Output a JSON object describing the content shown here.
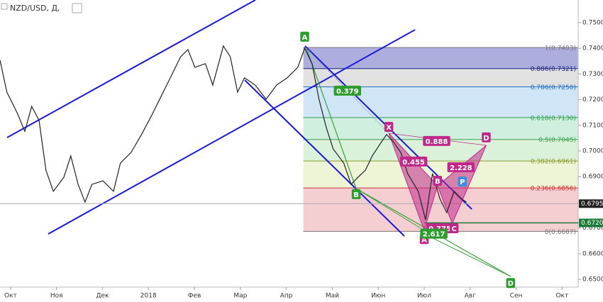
{
  "chart_data": {
    "type": "line",
    "title": "NZD/USD, Д,",
    "x": [
      -0.23,
      -0.08,
      0.15,
      0.31,
      0.46,
      0.62,
      0.77,
      0.93,
      1.16,
      1.31,
      1.47,
      1.62,
      1.77,
      2.01,
      2.24,
      2.39,
      2.62,
      2.85,
      3.09,
      3.32,
      3.55,
      3.7,
      3.86,
      4.01,
      4.24,
      4.4,
      4.63,
      4.78,
      4.94,
      5.09,
      5.32,
      5.56,
      5.79,
      6.02,
      6.25,
      6.4,
      6.56,
      6.71,
      6.87,
      7.02,
      7.25,
      7.41,
      7.56,
      7.72,
      7.87,
      8.02,
      8.18,
      8.33,
      8.49,
      8.64,
      8.87,
      9.03,
      9.18,
      9.34,
      9.49,
      9.65,
      9.8,
      9.92
    ],
    "series": [
      {
        "color": "#222222",
        "values": [
          0.7354,
          0.7229,
          0.7146,
          0.7077,
          0.7174,
          0.7119,
          0.6925,
          0.6843,
          0.6898,
          0.6981,
          0.687,
          0.6801,
          0.687,
          0.6884,
          0.6843,
          0.6953,
          0.6994,
          0.7064,
          0.7146,
          0.7229,
          0.7312,
          0.7367,
          0.7395,
          0.7326,
          0.734,
          0.7257,
          0.7409,
          0.7367,
          0.7229,
          0.7285,
          0.7257,
          0.7202,
          0.7257,
          0.7285,
          0.7326,
          0.7401,
          0.734,
          0.7202,
          0.7091,
          0.7008,
          0.6953,
          0.687,
          0.6898,
          0.6925,
          0.6981,
          0.7022,
          0.7064,
          0.7036,
          0.6994,
          0.6912,
          0.6843,
          0.6732,
          0.6912,
          0.6815,
          0.676,
          0.6843,
          0.6815,
          0.6801
        ]
      }
    ],
    "xlim": [
      -0.23,
      12.35
    ],
    "ylim": [
      0.647,
      0.7588
    ],
    "xticks": [
      {
        "value": 0,
        "label": "Окт"
      },
      {
        "value": 1,
        "label": "Ноя"
      },
      {
        "value": 2,
        "label": "Дек"
      },
      {
        "value": 3,
        "label": "2018"
      },
      {
        "value": 4,
        "label": "Фев"
      },
      {
        "value": 5,
        "label": "Мар"
      },
      {
        "value": 6,
        "label": "Апр"
      },
      {
        "value": 7,
        "label": "Май"
      },
      {
        "value": 8,
        "label": "Июн"
      },
      {
        "value": 9,
        "label": "Июл"
      },
      {
        "value": 10,
        "label": "Авг"
      },
      {
        "value": 11,
        "label": "Сен"
      },
      {
        "value": 12,
        "label": "Окт"
      }
    ],
    "yticks": [
      {
        "value": 0.65,
        "label": "0.6500"
      },
      {
        "value": 0.66,
        "label": "0.6600"
      },
      {
        "value": 0.67,
        "label": "0.6700"
      },
      {
        "value": 0.68,
        "label": "0.6800"
      },
      {
        "value": 0.69,
        "label": "0.6900"
      },
      {
        "value": 0.7,
        "label": "0.7000"
      },
      {
        "value": 0.71,
        "label": "0.7100"
      },
      {
        "value": 0.72,
        "label": "0.7200"
      },
      {
        "value": 0.73,
        "label": "0.7300"
      },
      {
        "value": 0.74,
        "label": "0.7400"
      },
      {
        "value": 0.75,
        "label": "0.7500"
      }
    ],
    "fib_start": 6.37,
    "fib_levels": [
      {
        "label": "1(0.7403)",
        "value": 0.7403,
        "color": "#777777",
        "fill": "#9fa0d8"
      },
      {
        "label": "0.886(0.7321)",
        "value": 0.7321,
        "color": "#1a237e",
        "fill": "#dcdcdc"
      },
      {
        "label": "0.786(0.7250)",
        "value": 0.725,
        "color": "#1e6fc0",
        "fill": "#c8e2f4"
      },
      {
        "label": "0.618(0.7130)",
        "value": 0.713,
        "color": "#2e9d4f",
        "fill": "#c9ecd9"
      },
      {
        "label": "0.5(0.7045)",
        "value": 0.7045,
        "color": "#3aa04a",
        "fill": "#d6eed3"
      },
      {
        "label": "0.382(0.6961)",
        "value": 0.6961,
        "color": "#8a9a2a",
        "fill": "#ebf2cf"
      },
      {
        "label": "0.236(0.6856)",
        "value": 0.6856,
        "color": "#d03030",
        "fill": "#f3c6ca"
      },
      {
        "label": "0(0.6687)",
        "value": 0.6687,
        "color": "#777777"
      }
    ],
    "price_markers": [
      {
        "value": 0.6795,
        "label": "0.6795",
        "color": "#222222"
      },
      {
        "value": 0.672,
        "label": "0.6720",
        "color": "#1b7a3a"
      }
    ],
    "pattern": {
      "color": "#c0288a",
      "x": [
        8.23,
        9.0,
        9.29,
        9.61,
        10.35
      ],
      "y": [
        0.7069,
        0.6691,
        0.6865,
        0.6718,
        0.7022
      ]
    },
    "annotations": [
      {
        "text": "A",
        "x": 6.4,
        "y": 0.7445,
        "color": "#2e9d2e"
      },
      {
        "text": "0.379",
        "x": 7.33,
        "y": 0.7235,
        "color": "#2e9d2e"
      },
      {
        "text": "B",
        "x": 7.52,
        "y": 0.6832,
        "color": "#2e9d2e"
      },
      {
        "text": "X",
        "x": 8.23,
        "y": 0.7094,
        "color": "#c0288a"
      },
      {
        "text": "0.888",
        "x": 9.27,
        "y": 0.7039,
        "color": "#c0288a"
      },
      {
        "text": "D",
        "x": 10.35,
        "y": 0.7053,
        "color": "#c0288a"
      },
      {
        "text": "0.455",
        "x": 8.77,
        "y": 0.6959,
        "color": "#c0288a"
      },
      {
        "text": "2.228",
        "x": 9.8,
        "y": 0.6937,
        "color": "#c0288a"
      },
      {
        "text": "B",
        "x": 9.29,
        "y": 0.6884,
        "color": "#c0288a"
      },
      {
        "text": "P",
        "x": 9.83,
        "y": 0.6881,
        "color": "#3a8ee0"
      },
      {
        "text": "0.775",
        "x": 9.34,
        "y": 0.6699,
        "color": "#c0288a"
      },
      {
        "text": "C",
        "x": 9.65,
        "y": 0.6699,
        "color": "#c0288a"
      },
      {
        "text": "A",
        "x": 9.0,
        "y": 0.6657,
        "color": "#c0288a"
      },
      {
        "text": "2.617",
        "x": 9.21,
        "y": 0.6678,
        "color": "#2e9d2e"
      },
      {
        "text": "D",
        "x": 10.88,
        "y": 0.6486,
        "color": "#2e9d2e"
      }
    ]
  }
}
